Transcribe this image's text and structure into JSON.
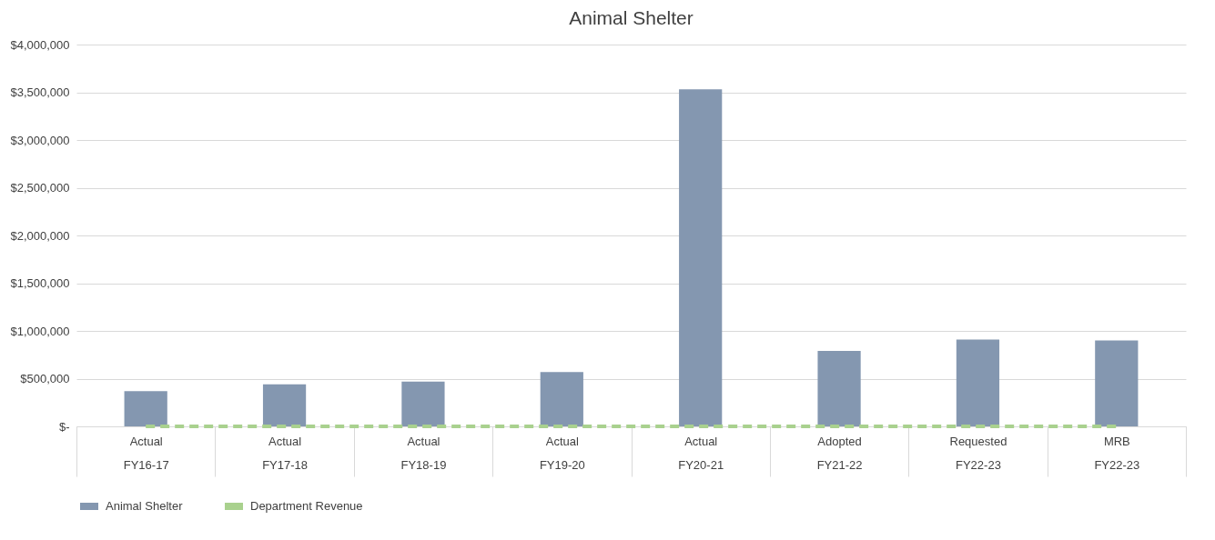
{
  "chart_data": {
    "type": "bar",
    "title": "Animal Shelter",
    "categories": [
      "Actual\nFY16-17",
      "Actual\nFY17-18",
      "Actual\nFY18-19",
      "Actual\nFY19-20",
      "Actual\nFY20-21",
      "Adopted\nFY21-22",
      "Requested\nFY22-23",
      "MRB\nFY22-23"
    ],
    "series": [
      {
        "name": "Animal Shelter",
        "color": "#8497b0",
        "values": [
          370000,
          440000,
          470000,
          570000,
          3530000,
          790000,
          910000,
          900000
        ]
      },
      {
        "name": "Department Revenue",
        "type": "line",
        "line_style": "dashed",
        "color": "#a9d18e",
        "values": [
          0,
          0,
          0,
          0,
          0,
          0,
          0,
          0
        ]
      }
    ],
    "ylim": [
      0,
      4000000
    ],
    "yticks": [
      {
        "value": 0,
        "label": "$-"
      },
      {
        "value": 500000,
        "label": "$500,000"
      },
      {
        "value": 1000000,
        "label": "$1,000,000"
      },
      {
        "value": 1500000,
        "label": "$1,500,000"
      },
      {
        "value": 2000000,
        "label": "$2,000,000"
      },
      {
        "value": 2500000,
        "label": "$2,500,000"
      },
      {
        "value": 3000000,
        "label": "$3,000,000"
      },
      {
        "value": 3500000,
        "label": "$3,500,000"
      },
      {
        "value": 4000000,
        "label": "$4,000,000"
      }
    ],
    "grid": "y",
    "legend": "bottom"
  }
}
